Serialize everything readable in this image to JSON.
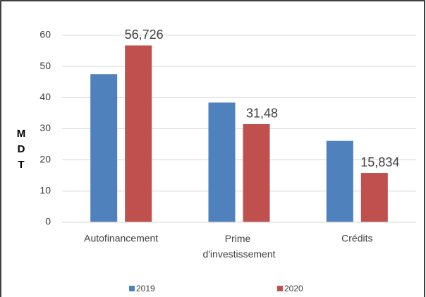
{
  "chart_data": {
    "type": "bar",
    "y_label": "MDT",
    "categories": [
      "Autofinancement",
      "Prime d'investissement",
      "Crédits"
    ],
    "series": [
      {
        "name": "2019",
        "color": "#4f81bd",
        "values": [
          47.5,
          38.4,
          26.1
        ]
      },
      {
        "name": "2020",
        "color": "#c0504d",
        "values": [
          56.726,
          31.48,
          15.834
        ],
        "value_labels": [
          "56,726",
          "31,48",
          "15,834"
        ]
      }
    ],
    "ylim": [
      0,
      60
    ],
    "yticks": [
      0,
      10,
      20,
      30,
      40,
      50,
      60
    ],
    "grid": true,
    "legend": "bottom"
  }
}
